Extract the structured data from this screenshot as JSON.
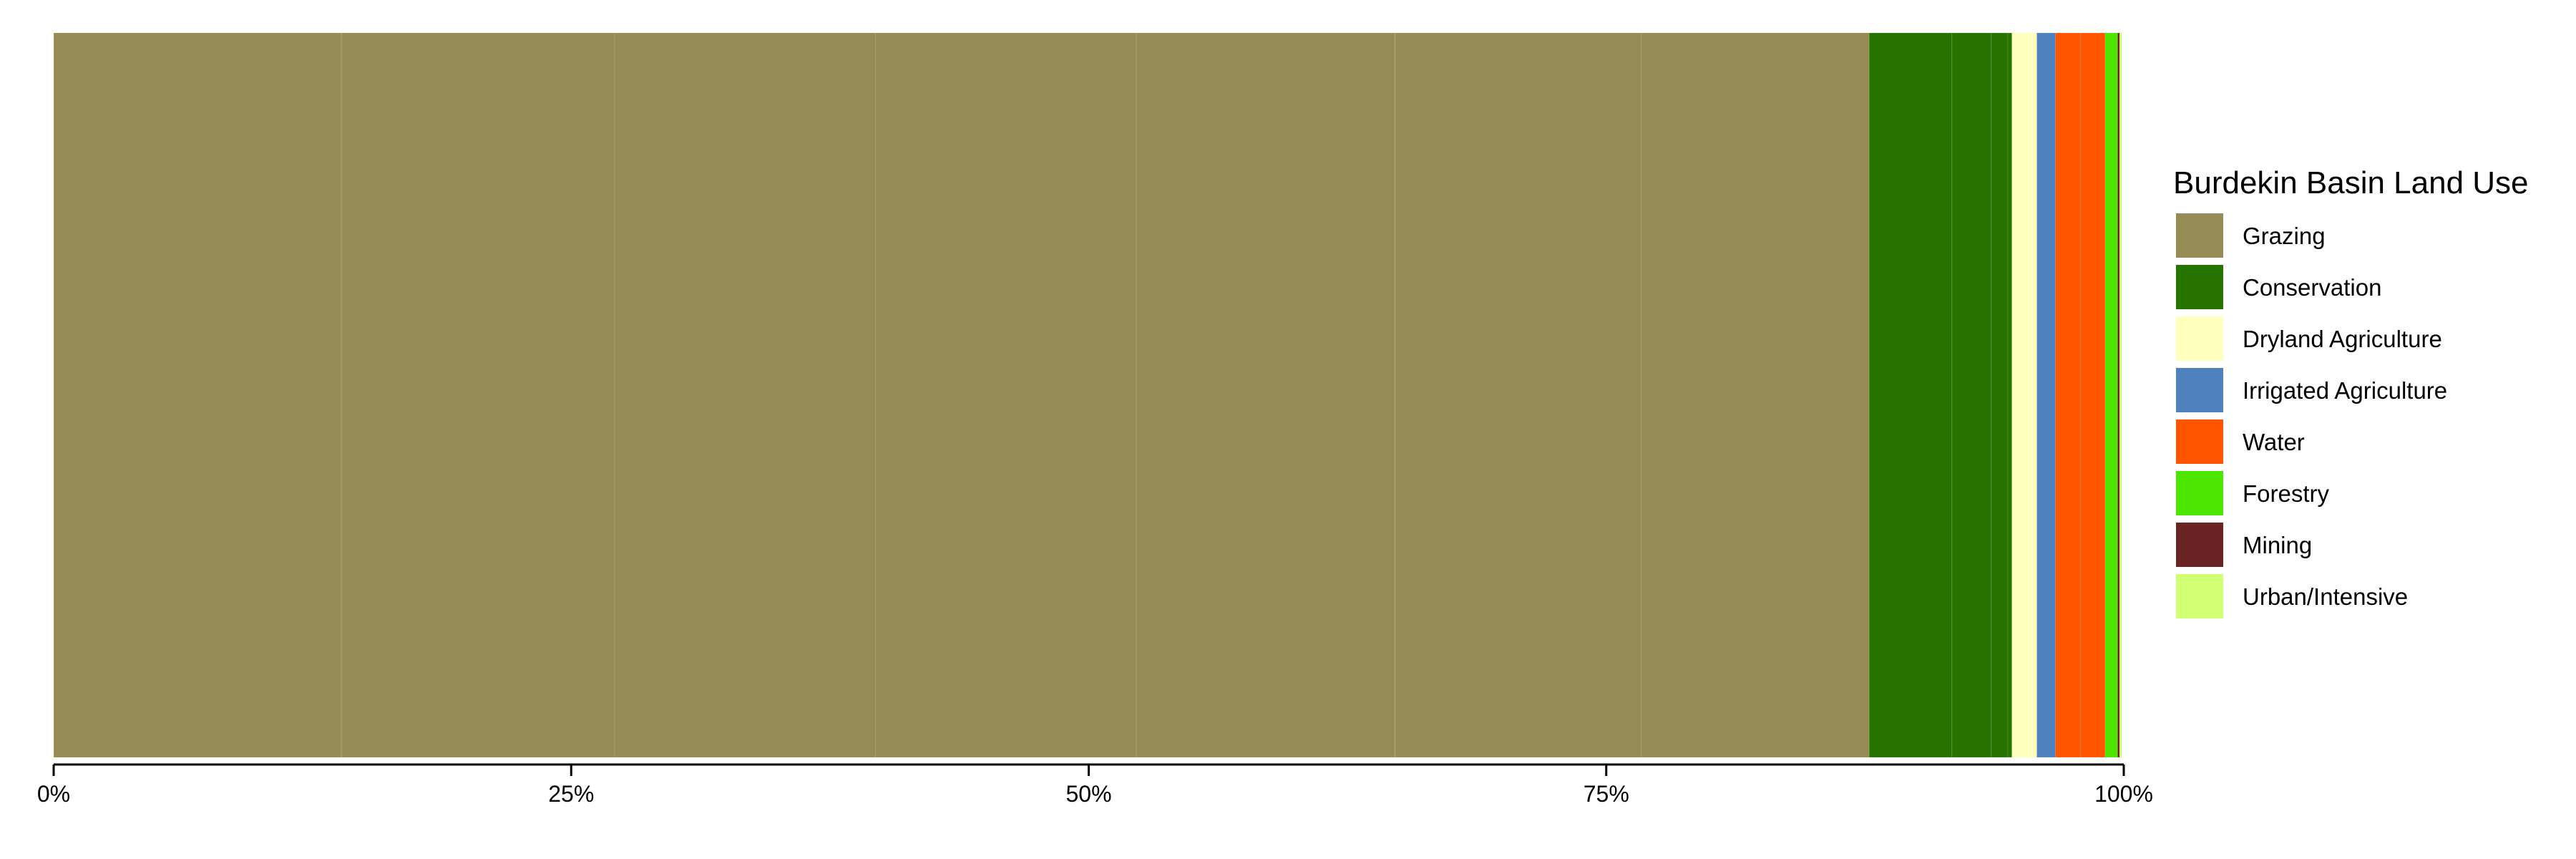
{
  "chart_data": {
    "type": "bar",
    "orientation": "horizontal-stacked-percent",
    "title": "",
    "xlabel": "",
    "ylabel": "",
    "xlim": [
      0,
      100
    ],
    "x_ticks": [
      "0%",
      "25%",
      "50%",
      "75%",
      "100%"
    ],
    "grid": false,
    "legend": {
      "title": "Burdekin Basin Land Use",
      "placement": "right",
      "entries": [
        {
          "name": "Grazing",
          "color": "#968b54"
        },
        {
          "name": "Conservation",
          "color": "#267300"
        },
        {
          "name": "Dryland Agriculture",
          "color": "#ffffbe"
        },
        {
          "name": "Irrigated Agriculture",
          "color": "#4e81bd"
        },
        {
          "name": "Water",
          "color": "#ff5500"
        },
        {
          "name": "Forestry",
          "color": "#4ce600"
        },
        {
          "name": "Mining",
          "color": "#6a2424"
        },
        {
          "name": "Urban/Intensive",
          "color": "#d1ff73"
        }
      ]
    },
    "segments": [
      {
        "category": "Grazing",
        "value": 13.9
      },
      {
        "category": "Grazing",
        "value": 13.2
      },
      {
        "category": "Grazing",
        "value": 12.6
      },
      {
        "category": "Grazing",
        "value": 12.6
      },
      {
        "category": "Grazing",
        "value": 12.5
      },
      {
        "category": "Grazing",
        "value": 11.9
      },
      {
        "category": "Grazing",
        "value": 11.0
      },
      {
        "category": "Conservation",
        "value": 4.0
      },
      {
        "category": "Conservation",
        "value": 1.9
      },
      {
        "category": "Conservation",
        "value": 0.8
      },
      {
        "category": "Conservation",
        "value": 0.2
      },
      {
        "category": "Dryland Agriculture",
        "value": 1.2
      },
      {
        "category": "Irrigated Agriculture",
        "value": 0.9
      },
      {
        "category": "Water",
        "value": 1.2
      },
      {
        "category": "Water",
        "value": 1.2
      },
      {
        "category": "Forestry",
        "value": 0.6
      },
      {
        "category": "Mining",
        "value": 0.1
      },
      {
        "category": "Urban/Intensive",
        "value": 0.1
      }
    ]
  }
}
